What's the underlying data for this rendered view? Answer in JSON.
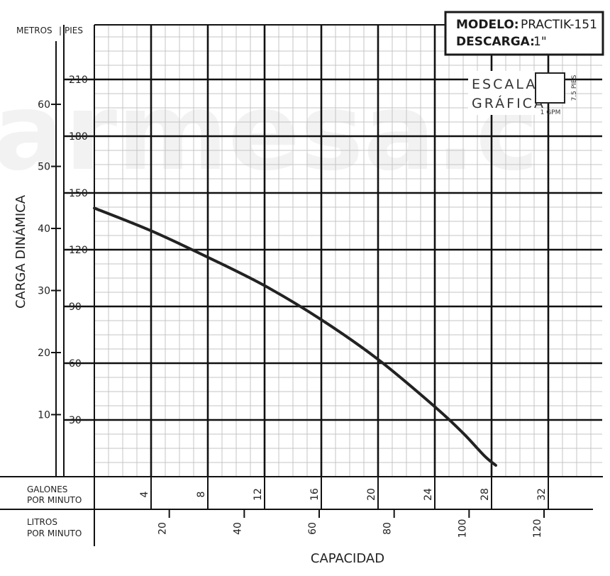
{
  "watermark": "armesa.c",
  "spec_box": {
    "model_label": "MODELO:",
    "model_value": "PRACTIK-151",
    "discharge_label": "DESCARGA:",
    "discharge_value": "1\""
  },
  "scale_legend": {
    "word1": "ESCALA",
    "word2": "GRÁFICA",
    "x_unit": "1 GPM",
    "y_unit": "7.5 PIES"
  },
  "chart_data": {
    "type": "line",
    "title": "",
    "xlabel": "CAPACIDAD",
    "ylabel": "CARGA DINÁMICA",
    "x_unit_label": "GALONES POR MINUTO",
    "x2_unit_label": "LITROS POR MINUTO",
    "y_left_header": "METROS",
    "y_right_header": "PIES",
    "xlim_gpm": [
      0,
      35
    ],
    "ylim_ft": [
      0,
      240
    ],
    "grid": true,
    "x_ticks_gpm": [
      4,
      8,
      12,
      16,
      20,
      24,
      28,
      32
    ],
    "x_ticks_lpm": [
      20,
      40,
      60,
      80,
      100,
      120
    ],
    "y_ticks_ft": [
      30,
      60,
      90,
      120,
      150,
      180,
      210
    ],
    "y_ticks_m": [
      10,
      20,
      30,
      40,
      50,
      60
    ],
    "series": [
      {
        "x": [
          0,
          4,
          8,
          12,
          16,
          20,
          24,
          26,
          27.5,
          28.3
        ],
        "y": [
          142,
          130,
          116,
          101,
          83,
          62,
          37,
          23,
          11,
          6
        ]
      }
    ]
  }
}
